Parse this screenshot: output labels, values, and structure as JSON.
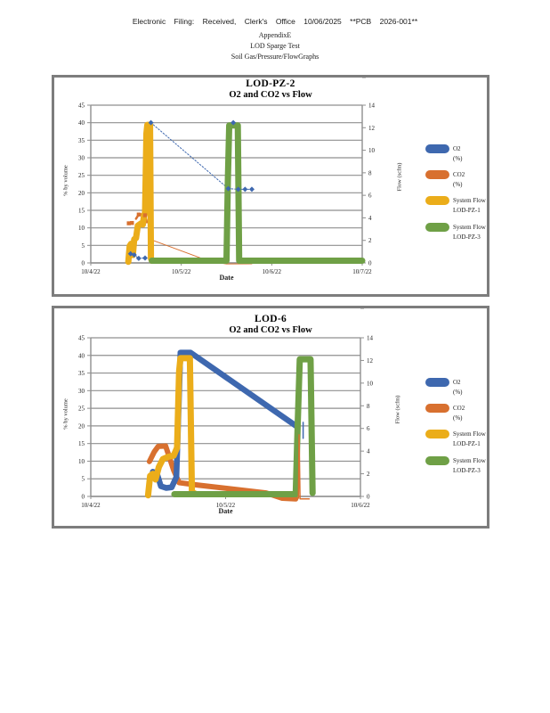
{
  "page": {
    "header_line1": "Electronic Filing: Received, Clerk's Office 10/06/2025 **PCB 2026-001**",
    "header_line2": "AppendixE",
    "header_line3": "LOD Sparge Test",
    "header_line4": "Soil Gas/Pressure/FlowGraphs"
  },
  "colors": {
    "o2": "#3E68AF",
    "co2": "#D8702F",
    "flow1": "#EBAD1A",
    "flow3": "#6FA046",
    "grid": "#8F8F8F",
    "axis_text": "#222222"
  },
  "chart_data": [
    {
      "type": "line",
      "title": "LOD-PZ-2",
      "subtitle": "O2 and CO2 vs Flow",
      "x_axis": {
        "label": "Date",
        "tick_labels": [
          "10/4/22",
          "10/5/22",
          "10/6/22",
          "10/7/22"
        ],
        "tick_days": [
          0,
          1,
          2,
          3
        ],
        "range_days": [
          0,
          3
        ]
      },
      "left_axis": {
        "label": "% by volume",
        "ticks": [
          0,
          5,
          10,
          15,
          20,
          25,
          30,
          35,
          40,
          45
        ]
      },
      "right_axis": {
        "label": "Flow (scfm)",
        "ticks": [
          0,
          2,
          4,
          6,
          8,
          10,
          12,
          14
        ]
      },
      "legend": [
        {
          "lines": [
            "O2",
            "(%)"
          ],
          "color_key": "o2"
        },
        {
          "lines": [
            "CO2",
            "(%)"
          ],
          "color_key": "co2"
        },
        {
          "lines": [
            "System Flow",
            "LOD-PZ-1"
          ],
          "color_key": "flow1"
        },
        {
          "lines": [
            "System Flow",
            "LOD-PZ-3"
          ],
          "color_key": "flow3"
        }
      ],
      "series": [
        {
          "name": "CO2 (%)",
          "axis": "left",
          "color_key": "co2",
          "marker": "square",
          "paths": [
            {
              "width": 2.5,
              "points": [
                [
                  0.42,
                  11.3
                ],
                [
                  0.445,
                  11.4
                ],
                [
                  0.465,
                  11.3
                ]
              ]
            },
            {
              "width": 2.5,
              "points": [
                [
                  0.5,
                  12.6
                ],
                [
                  0.53,
                  13.8
                ],
                [
                  0.57,
                  13.9
                ],
                [
                  0.6,
                  13.6
                ],
                [
                  0.62,
                  11.6
                ]
              ]
            },
            {
              "width": 1.0,
              "points": [
                [
                  0.69,
                  6.4
                ],
                [
                  1.32,
                  0.4
                ],
                [
                  1.5,
                  -0.3
                ],
                [
                  1.78,
                  -0.25
                ]
              ]
            }
          ],
          "markers": [
            [
              0.42,
              11.3
            ],
            [
              0.455,
              11.4
            ],
            [
              0.53,
              13.8
            ],
            [
              0.6,
              13.6
            ]
          ]
        },
        {
          "name": "O2 (%)",
          "axis": "left",
          "color_key": "o2",
          "marker": "diamond",
          "paths": [
            {
              "width": 1.0,
              "dash": "1.6,2",
              "points": [
                [
                  0.44,
                  2.6
                ],
                [
                  0.48,
                  2.3
                ],
                [
                  0.53,
                  1.3
                ],
                [
                  0.6,
                  1.4
                ],
                [
                  0.64,
                  1.5
                ],
                [
                  0.655,
                  8.7
                ],
                [
                  0.665,
                  40
                ]
              ]
            },
            {
              "width": 1.0,
              "dash": "1.6,2",
              "points": [
                [
                  0.665,
                  40
                ],
                [
                  1.52,
                  21.2
                ]
              ]
            },
            {
              "width": 1.0,
              "dash": "1.6,2",
              "points": [
                [
                  1.52,
                  21.2
                ],
                [
                  1.63,
                  21
                ],
                [
                  1.78,
                  21
                ]
              ]
            }
          ],
          "markers": [
            [
              0.44,
              2.6
            ],
            [
              0.48,
              2.3
            ],
            [
              0.53,
              1.3
            ],
            [
              0.6,
              1.4
            ],
            [
              0.665,
              40
            ],
            [
              1.575,
              40
            ],
            [
              1.52,
              21.2
            ],
            [
              1.63,
              21
            ],
            [
              1.705,
              21
            ],
            [
              1.78,
              21
            ]
          ]
        },
        {
          "name": "System Flow LOD-PZ-1",
          "axis": "right",
          "color_key": "flow1",
          "paths": [
            {
              "width": 7,
              "points": [
                [
                  0.415,
                  0.1
                ],
                [
                  0.43,
                  1.5
                ],
                [
                  0.445,
                  1.7
                ],
                [
                  0.465,
                  0.7
                ],
                [
                  0.48,
                  2.1
                ],
                [
                  0.5,
                  2.2
                ],
                [
                  0.52,
                  3.3
                ],
                [
                  0.555,
                  3.5
                ],
                [
                  0.575,
                  3.4
                ],
                [
                  0.59,
                  4.3
                ],
                [
                  0.6,
                  4.4
                ],
                [
                  0.615,
                  11.5
                ],
                [
                  0.625,
                  12.25
                ],
                [
                  0.655,
                  12.25
                ],
                [
                  0.665,
                  0.4
                ],
                [
                  0.675,
                  0.2
                ]
              ]
            }
          ]
        },
        {
          "name": "System Flow LOD-PZ-3",
          "axis": "right",
          "color_key": "flow3",
          "paths": [
            {
              "width": 7,
              "points": [
                [
                  0.675,
                  0.2
                ],
                [
                  1.5,
                  0.2
                ],
                [
                  1.515,
                  7.3
                ],
                [
                  1.53,
                  12.2
                ],
                [
                  1.625,
                  12.2
                ],
                [
                  1.64,
                  0.2
                ],
                [
                  3.0,
                  0.2
                ]
              ]
            }
          ]
        }
      ]
    },
    {
      "type": "line",
      "title": "LOD-6",
      "subtitle": "O2 and CO2 vs Flow",
      "x_axis": {
        "label": "Date",
        "tick_labels": [
          "10/4/22",
          "10/5/22",
          "10/6/22"
        ],
        "tick_days": [
          0,
          1,
          2
        ],
        "range_days": [
          0,
          2
        ]
      },
      "left_axis": {
        "label": "% by volume",
        "ticks": [
          0,
          5,
          10,
          15,
          20,
          25,
          30,
          35,
          40,
          45
        ]
      },
      "right_axis": {
        "label": "Flow (scfm)",
        "ticks": [
          0,
          2,
          4,
          6,
          8,
          10,
          12,
          14
        ]
      },
      "legend": [
        {
          "lines": [
            "O2",
            "(%)"
          ],
          "color_key": "o2"
        },
        {
          "lines": [
            "CO2",
            "(%)"
          ],
          "color_key": "co2"
        },
        {
          "lines": [
            "System Flow",
            "LOD-PZ-1"
          ],
          "color_key": "flow1"
        },
        {
          "lines": [
            "System Flow",
            "LOD-PZ-3"
          ],
          "color_key": "flow3"
        }
      ],
      "series": [
        {
          "name": "CO2 (%)",
          "axis": "left",
          "color_key": "co2",
          "paths": [
            {
              "width": 6,
              "points": [
                [
                  0.435,
                  9.9
                ],
                [
                  0.47,
                  12.6
                ],
                [
                  0.5,
                  14.2
                ],
                [
                  0.555,
                  14.3
                ],
                [
                  0.585,
                  10.9
                ],
                [
                  0.615,
                  7.4
                ],
                [
                  0.655,
                  3.9
                ],
                [
                  0.8,
                  3.2
                ],
                [
                  1.3,
                  1.0
                ],
                [
                  1.42,
                  -0.5
                ],
                [
                  1.52,
                  -0.7
                ]
              ]
            },
            {
              "width": 1.5,
              "overlay": true,
              "points": [
                [
                  1.54,
                  -0.5
                ],
                [
                  1.545,
                  17.5
                ],
                [
                  1.552,
                  -0.7
                ],
                [
                  1.62,
                  -0.7
                ]
              ]
            }
          ]
        },
        {
          "name": "O2 (%)",
          "axis": "left",
          "color_key": "o2",
          "paths": [
            {
              "width": 6.5,
              "points": [
                [
                  0.46,
                  7.0
                ],
                [
                  0.49,
                  6.6
                ],
                [
                  0.52,
                  2.9
                ],
                [
                  0.56,
                  2.4
                ],
                [
                  0.6,
                  2.6
                ],
                [
                  0.635,
                  5.5
                ],
                [
                  0.665,
                  40.8
                ],
                [
                  0.74,
                  40.8
                ],
                [
                  1.53,
                  19.8
                ]
              ]
            },
            {
              "width": 1.5,
              "overlay": true,
              "points": [
                [
                  1.575,
                  21
                ],
                [
                  1.575,
                  16.5
                ]
              ]
            }
          ]
        },
        {
          "name": "System Flow LOD-PZ-1",
          "axis": "right",
          "color_key": "flow1",
          "paths": [
            {
              "width": 7,
              "points": [
                [
                  0.425,
                  0.1
                ],
                [
                  0.44,
                  1.8
                ],
                [
                  0.46,
                  2.0
                ],
                [
                  0.48,
                  1.5
                ],
                [
                  0.505,
                  2.6
                ],
                [
                  0.535,
                  3.3
                ],
                [
                  0.575,
                  3.5
                ],
                [
                  0.615,
                  3.6
                ],
                [
                  0.64,
                  4.3
                ],
                [
                  0.655,
                  11.0
                ],
                [
                  0.665,
                  12.2
                ],
                [
                  0.735,
                  12.2
                ],
                [
                  0.75,
                  0.4
                ],
                [
                  0.78,
                  0.2
                ]
              ]
            }
          ]
        },
        {
          "name": "System Flow LOD-PZ-3",
          "axis": "right",
          "color_key": "flow3",
          "paths": [
            {
              "width": 7,
              "points": [
                [
                  0.62,
                  0.2
                ],
                [
                  1.52,
                  0.2
                ],
                [
                  1.535,
                  6.5
                ],
                [
                  1.55,
                  12.1
                ],
                [
                  1.63,
                  12.1
                ],
                [
                  1.645,
                  0.3
                ]
              ]
            }
          ]
        }
      ]
    }
  ]
}
